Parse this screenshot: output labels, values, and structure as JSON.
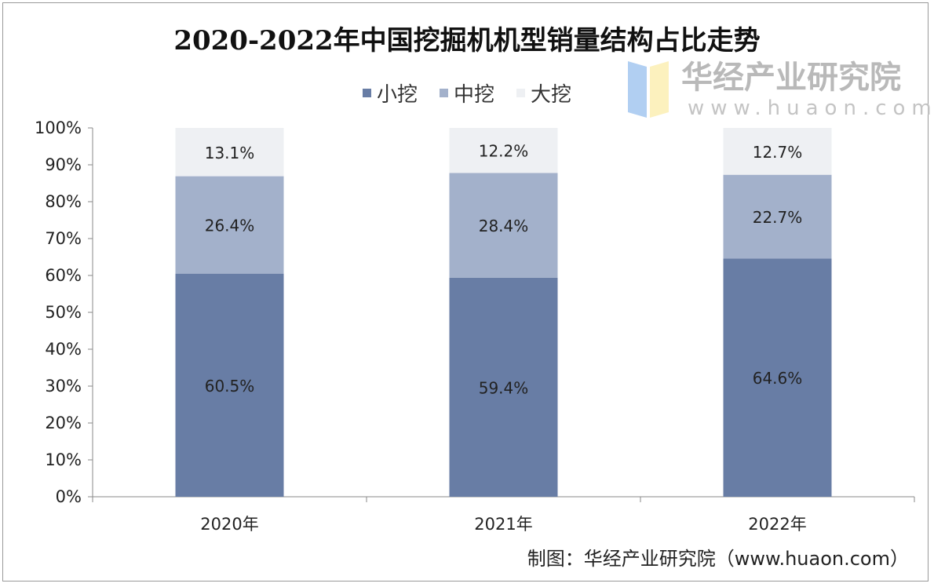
{
  "chart_data": {
    "type": "bar",
    "stacked": true,
    "title": "2020-2022年中国挖掘机机型销量结构占比走势",
    "categories": [
      "2020年",
      "2021年",
      "2022年"
    ],
    "series": [
      {
        "name": "小挖",
        "values": [
          60.5,
          59.4,
          64.6
        ],
        "color": "#687da5",
        "labels": [
          "60.5%",
          "59.4%",
          "64.6%"
        ]
      },
      {
        "name": "中挖",
        "values": [
          26.4,
          28.4,
          22.7
        ],
        "color": "#a3b1cb",
        "labels": [
          "26.4%",
          "28.4%",
          "22.7%"
        ]
      },
      {
        "name": "大挖",
        "values": [
          13.1,
          12.2,
          12.7
        ],
        "color": "#eef0f3",
        "labels": [
          "13.1%",
          "12.2%",
          "12.7%"
        ]
      }
    ],
    "ylim": [
      0,
      100
    ],
    "yticks": [
      "0%",
      "10%",
      "20%",
      "30%",
      "40%",
      "50%",
      "60%",
      "70%",
      "80%",
      "90%",
      "100%"
    ],
    "legend_position": "top",
    "grid": false
  },
  "source": "制图：华经产业研究院（www.huaon.com）",
  "watermark": {
    "name": "华经产业研究院",
    "url": "www.huaon.com"
  }
}
